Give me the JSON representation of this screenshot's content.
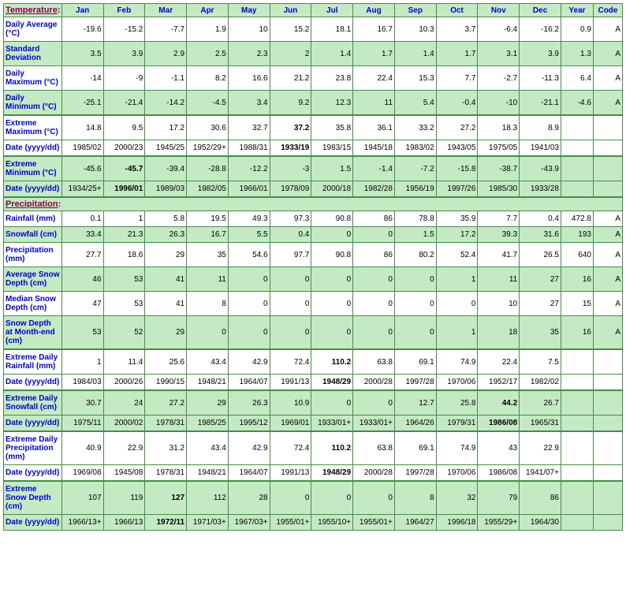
{
  "header": {
    "section_temp": "Temperature",
    "section_precip": "Precipitation",
    "months": [
      "Jan",
      "Feb",
      "Mar",
      "Apr",
      "May",
      "Jun",
      "Jul",
      "Aug",
      "Sep",
      "Oct",
      "Nov",
      "Dec"
    ],
    "year": "Year",
    "code": "Code",
    "colon": ":"
  },
  "rows": [
    {
      "id": "daily-average",
      "label": "Daily Average (°C)",
      "bg": "w",
      "data": [
        "-19.6",
        "-15.2",
        "-7.7",
        "1.9",
        "10",
        "15.2",
        "18.1",
        "16.7",
        "10.3",
        "3.7",
        "-6.4",
        "-16.2",
        "0.9",
        "A"
      ]
    },
    {
      "id": "std-dev",
      "label": "Standard Deviation",
      "bg": "g",
      "data": [
        "3.5",
        "3.9",
        "2.9",
        "2.5",
        "2.3",
        "2",
        "1.4",
        "1.7",
        "1.4",
        "1.7",
        "3.1",
        "3.9",
        "1.3",
        "A"
      ]
    },
    {
      "id": "daily-max",
      "label": "Daily Maximum (°C)",
      "bg": "w",
      "data": [
        "-14",
        "-9",
        "-1.1",
        "8.2",
        "16.6",
        "21.2",
        "23.8",
        "22.4",
        "15.3",
        "7.7",
        "-2.7",
        "-11.3",
        "6.4",
        "A"
      ]
    },
    {
      "id": "daily-min",
      "label": "Daily Minimum (°C)",
      "bg": "g",
      "data": [
        "-25.1",
        "-21.4",
        "-14.2",
        "-4.5",
        "3.4",
        "9.2",
        "12.3",
        "11",
        "5.4",
        "-0.4",
        "-10",
        "-21.1",
        "-4.6",
        "A"
      ]
    },
    {
      "id": "ext-max",
      "label": "Extreme Maximum (°C)",
      "bg": "w",
      "groupTop": true,
      "data": [
        "14.8",
        "9.5",
        "17.2",
        "30.6",
        "32.7",
        "37.2",
        "35.8",
        "36.1",
        "33.2",
        "27.2",
        "18.3",
        "8.9",
        "",
        ""
      ],
      "boldCols": [
        5
      ]
    },
    {
      "id": "ext-max-date",
      "label": "Date (yyyy/dd)",
      "bg": "w",
      "data": [
        "1985/02",
        "2000/23",
        "1945/25",
        "1952/29+",
        "1988/31",
        "1933/19",
        "1983/15",
        "1945/18",
        "1983/02",
        "1943/05",
        "1975/05",
        "1941/03",
        "",
        ""
      ],
      "boldCols": [
        5
      ]
    },
    {
      "id": "ext-min",
      "label": "Extreme Minimum (°C)",
      "bg": "g",
      "groupTop": true,
      "data": [
        "-45.6",
        "-45.7",
        "-39.4",
        "-28.8",
        "-12.2",
        "-3",
        "1.5",
        "-1.4",
        "-7.2",
        "-15.8",
        "-38.7",
        "-43.9",
        "",
        ""
      ],
      "boldCols": [
        1
      ]
    },
    {
      "id": "ext-min-date",
      "label": "Date (yyyy/dd)",
      "bg": "g",
      "data": [
        "1934/25+",
        "1996/01",
        "1989/03",
        "1982/05",
        "1966/01",
        "1978/09",
        "2000/18",
        "1982/28",
        "1956/19",
        "1997/26",
        "1985/30",
        "1933/28",
        "",
        ""
      ],
      "boldCols": [
        1
      ]
    },
    {
      "id": "rainfall",
      "label": "Rainfall (mm)",
      "bg": "w",
      "data": [
        "0.1",
        "1",
        "5.8",
        "19.5",
        "49.3",
        "97.3",
        "90.8",
        "86",
        "78.8",
        "35.9",
        "7.7",
        "0.4",
        "472.8",
        "A"
      ]
    },
    {
      "id": "snowfall",
      "label": "Snowfall (cm)",
      "bg": "g",
      "data": [
        "33.4",
        "21.3",
        "26.3",
        "16.7",
        "5.5",
        "0.4",
        "0",
        "0",
        "1.5",
        "17.2",
        "39.3",
        "31.6",
        "193",
        "A"
      ]
    },
    {
      "id": "precip",
      "label": "Precipitation (mm)",
      "bg": "w",
      "data": [
        "27.7",
        "18.6",
        "29",
        "35",
        "54.6",
        "97.7",
        "90.8",
        "86",
        "80.2",
        "52.4",
        "41.7",
        "26.5",
        "640",
        "A"
      ]
    },
    {
      "id": "avg-snow-depth",
      "label": "Average Snow Depth (cm)",
      "bg": "g",
      "data": [
        "46",
        "53",
        "41",
        "11",
        "0",
        "0",
        "0",
        "0",
        "0",
        "1",
        "11",
        "27",
        "16",
        "A"
      ]
    },
    {
      "id": "median-snow-depth",
      "label": "Median Snow Depth (cm)",
      "bg": "w",
      "data": [
        "47",
        "53",
        "41",
        "8",
        "0",
        "0",
        "0",
        "0",
        "0",
        "0",
        "10",
        "27",
        "15",
        "A"
      ]
    },
    {
      "id": "snow-depth-eom",
      "label": "Snow Depth at Month-end (cm)",
      "bg": "g",
      "data": [
        "53",
        "52",
        "29",
        "0",
        "0",
        "0",
        "0",
        "0",
        "0",
        "1",
        "18",
        "35",
        "16",
        "A"
      ]
    },
    {
      "id": "ext-daily-rain",
      "label": "Extreme Daily Rainfall (mm)",
      "bg": "w",
      "groupTop": true,
      "data": [
        "1",
        "11.4",
        "25.6",
        "43.4",
        "42.9",
        "72.4",
        "110.2",
        "63.8",
        "69.1",
        "74.9",
        "22.4",
        "7.5",
        "",
        ""
      ],
      "boldCols": [
        6
      ]
    },
    {
      "id": "ext-daily-rain-date",
      "label": "Date (yyyy/dd)",
      "bg": "w",
      "data": [
        "1984/03",
        "2000/26",
        "1990/15",
        "1948/21",
        "1964/07",
        "1991/13",
        "1948/29",
        "2000/28",
        "1997/28",
        "1970/06",
        "1952/17",
        "1982/02",
        "",
        ""
      ],
      "boldCols": [
        6
      ]
    },
    {
      "id": "ext-daily-snow",
      "label": "Extreme Daily Snowfall (cm)",
      "bg": "g",
      "groupTop": true,
      "data": [
        "30.7",
        "24",
        "27.2",
        "29",
        "26.3",
        "10.9",
        "0",
        "0",
        "12.7",
        "25.8",
        "44.2",
        "26.7",
        "",
        ""
      ],
      "boldCols": [
        10
      ]
    },
    {
      "id": "ext-daily-snow-date",
      "label": "Date (yyyy/dd)",
      "bg": "g",
      "data": [
        "1975/11",
        "2000/02",
        "1978/31",
        "1985/25",
        "1995/12",
        "1969/01",
        "1933/01+",
        "1933/01+",
        "1964/26",
        "1979/31",
        "1986/08",
        "1965/31",
        "",
        ""
      ],
      "boldCols": [
        10
      ]
    },
    {
      "id": "ext-daily-precip",
      "label": "Extreme Daily Precipitation (mm)",
      "bg": "w",
      "groupTop": true,
      "data": [
        "40.9",
        "22.9",
        "31.2",
        "43.4",
        "42.9",
        "72.4",
        "110.2",
        "63.8",
        "69.1",
        "74.9",
        "43",
        "22.9",
        "",
        ""
      ],
      "boldCols": [
        6
      ]
    },
    {
      "id": "ext-daily-precip-date",
      "label": "Date (yyyy/dd)",
      "bg": "w",
      "data": [
        "1969/08",
        "1945/08",
        "1978/31",
        "1948/21",
        "1964/07",
        "1991/13",
        "1948/29",
        "2000/28",
        "1997/28",
        "1970/06",
        "1986/08",
        "1941/07+",
        "",
        ""
      ],
      "boldCols": [
        6
      ]
    },
    {
      "id": "ext-snow-depth",
      "label": "Extreme Snow Depth (cm)",
      "bg": "g",
      "groupTop": true,
      "data": [
        "107",
        "119",
        "127",
        "112",
        "28",
        "0",
        "0",
        "0",
        "8",
        "32",
        "79",
        "86",
        "",
        ""
      ],
      "boldCols": [
        2
      ]
    },
    {
      "id": "ext-snow-depth-date",
      "label": "Date (yyyy/dd)",
      "bg": "g",
      "data": [
        "1966/13+",
        "1966/13",
        "1972/11",
        "1971/03+",
        "1967/03+",
        "1955/01+",
        "1955/10+",
        "1955/01+",
        "1964/27",
        "1996/18",
        "1955/29+",
        "1964/30",
        "",
        ""
      ],
      "boldCols": [
        2
      ]
    }
  ],
  "layout": {
    "precip_section_before": "rainfall"
  },
  "colors": {
    "green": "#c4eac4",
    "white": "#ffffff",
    "label_blue": "#0000cd",
    "section_maroon": "#8b0045",
    "border": "#4a8a4a"
  }
}
